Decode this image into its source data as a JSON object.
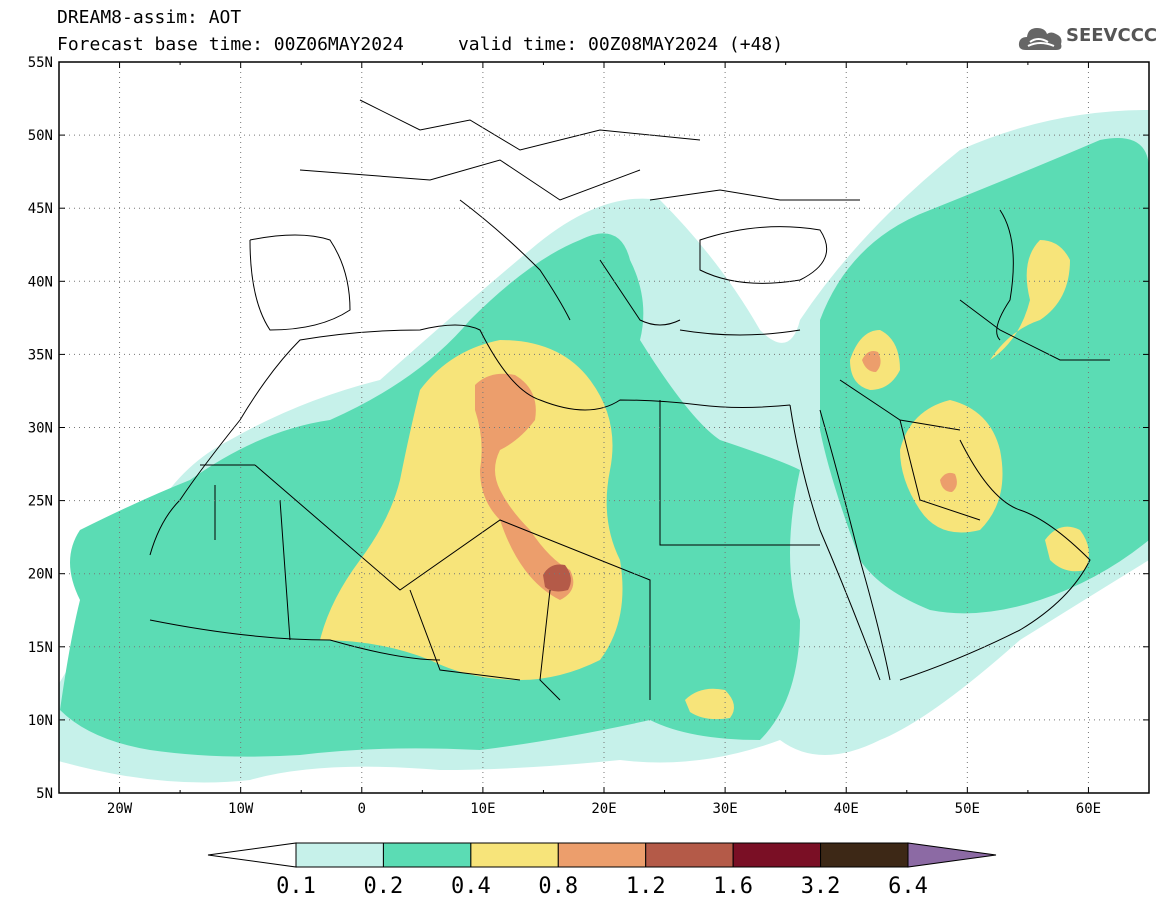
{
  "header": {
    "line1": "DREAM8-assim: AOT",
    "line2": "Forecast base time: 00Z06MAY2024     valid time: 00Z08MAY2024 (+48)"
  },
  "logo": {
    "text": "SEEVCCC",
    "icon": "cloud-icon"
  },
  "map": {
    "lon_range": [
      -25,
      65
    ],
    "lat_range": [
      5,
      55
    ],
    "lat_labels": [
      "55N",
      "50N",
      "45N",
      "40N",
      "35N",
      "30N",
      "25N",
      "20N",
      "15N",
      "10N",
      "5N"
    ],
    "lon_labels": [
      "20W",
      "10W",
      "0",
      "10E",
      "20E",
      "30E",
      "40E",
      "50E",
      "60E"
    ]
  },
  "colorbar": {
    "labels": [
      "0.1",
      "0.2",
      "0.4",
      "0.8",
      "1.2",
      "1.6",
      "3.2",
      "6.4"
    ],
    "colors": [
      "#ffffff",
      "#c6f1ea",
      "#5bdcb4",
      "#f7e47a",
      "#ec9e6c",
      "#b45a48",
      "#7a0f25",
      "#3d2816",
      "#8c6aa4"
    ]
  }
}
